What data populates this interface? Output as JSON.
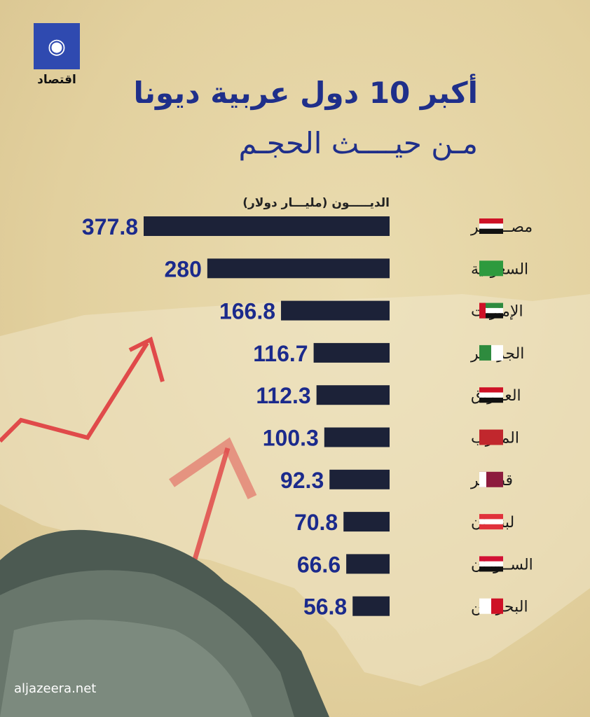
{
  "brand": {
    "logo_text": "الجزيرة",
    "sub": "اقتصاد",
    "footer": "aljazeera.net"
  },
  "title": {
    "line1": "أكبر 10 دول عربية ديونا",
    "line2": "مـن حيــــث الحجـم"
  },
  "chart_data": {
    "type": "bar",
    "orientation": "horizontal",
    "title": "أكبر 10 دول عربية ديونا من حيث الحجم",
    "xlabel": "الديـــــون (مليـــار دولار)",
    "categories": [
      "مصـــــــر",
      "السعودية",
      "الإمارات",
      "الجزائــر",
      "العــراق",
      "المغرب",
      "قطـــر",
      "لبنـــان",
      "الســودان",
      "البحريــن"
    ],
    "flags": [
      "egypt",
      "saudi-arabia",
      "uae",
      "algeria",
      "iraq",
      "morocco",
      "qatar",
      "lebanon",
      "sudan",
      "bahrain"
    ],
    "values": [
      377.8,
      280,
      166.8,
      116.7,
      112.3,
      100.3,
      92.3,
      70.8,
      66.6,
      56.8
    ],
    "value_labels": [
      "377.8",
      "280",
      "166.8",
      "116.7",
      "112.3",
      "100.3",
      "92.3",
      "70.8",
      "66.6",
      "56.8"
    ],
    "bar_color": "#1c2238",
    "label_color": "#1b2a8c"
  },
  "colors": {
    "title": "#1f2f8a",
    "arrow": "#e04040"
  }
}
